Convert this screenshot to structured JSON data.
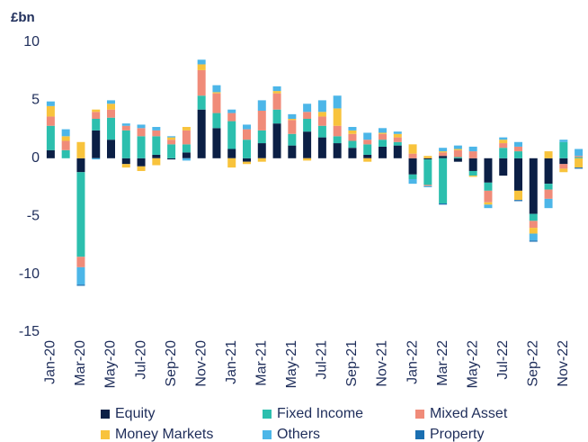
{
  "chart_data": {
    "type": "stacked_bar",
    "y_label": "£bn",
    "categories": [
      "Jan-20",
      null,
      "Mar-20",
      null,
      "May-20",
      null,
      "Jul-20",
      null,
      "Sep-20",
      null,
      "Nov-20",
      null,
      "Jan-21",
      null,
      "Mar-21",
      null,
      "May-21",
      null,
      "Jul-21",
      null,
      "Sep-21",
      null,
      "Nov-21",
      null,
      "Jan-22",
      null,
      "Mar-22",
      null,
      "May-22",
      null,
      "Jul-22",
      null,
      "Sep-22",
      null,
      "Nov-22",
      null
    ],
    "series": [
      {
        "name": "Equity",
        "color": "#0b1f45",
        "values": [
          0.7,
          0,
          -1.2,
          2.4,
          1.6,
          -0.5,
          -0.7,
          0.3,
          -0.1,
          0.5,
          4.2,
          2.6,
          0.8,
          -0.3,
          1.3,
          3.0,
          1.1,
          2.3,
          1.8,
          1.3,
          0.9,
          0.3,
          1.0,
          1.1,
          -1.4,
          -0.1,
          0.2,
          -0.3,
          -1.1,
          -2.1,
          -1.5,
          -2.8,
          -4.8,
          -2.2,
          -0.5,
          0
        ]
      },
      {
        "name": "Fixed Income",
        "color": "#2cbfae",
        "values": [
          2.1,
          0.7,
          -7.3,
          1.0,
          1.9,
          2.4,
          1.9,
          1.6,
          1.2,
          0.7,
          1.2,
          1.3,
          2.4,
          1.6,
          1.1,
          1.2,
          1.0,
          1.1,
          1.0,
          0.6,
          0.6,
          0.9,
          0.6,
          0.3,
          -0.4,
          -2.2,
          -3.9,
          0.1,
          -0.4,
          -0.7,
          0.9,
          0.6,
          -0.6,
          -0.5,
          1.4,
          0.1
        ]
      },
      {
        "name": "Mixed Asset",
        "color": "#f08b79",
        "values": [
          0.8,
          0.8,
          -0.9,
          0.6,
          0.7,
          0.4,
          0.7,
          0.5,
          0.4,
          1.2,
          2.2,
          1.7,
          0.7,
          0.9,
          1.7,
          1.4,
          1.2,
          0.6,
          0.8,
          0.9,
          0.6,
          0.4,
          0.5,
          0.4,
          0.4,
          -0.1,
          0.3,
          0.6,
          0.6,
          -1.0,
          0.4,
          0.4,
          -0.6,
          -0.8,
          -0.4,
          0.1
        ]
      },
      {
        "name": "Money Markets",
        "color": "#f8c33c",
        "values": [
          0.9,
          0.4,
          1.4,
          0.2,
          0.5,
          -0.3,
          -0.4,
          -0.6,
          0.2,
          0.3,
          0.5,
          0.1,
          -0.8,
          -0.2,
          -0.3,
          0.2,
          0.1,
          -0.2,
          0.4,
          1.5,
          0.3,
          -0.3,
          0.1,
          0.3,
          0.8,
          0.2,
          0.1,
          0.1,
          -0.1,
          -0.2,
          0.3,
          -0.8,
          -0.5,
          0.6,
          -0.3,
          -0.8
        ]
      },
      {
        "name": "Others",
        "color": "#4cb6e8",
        "values": [
          0.4,
          0.6,
          -1.5,
          -0.1,
          0.3,
          0.2,
          0.3,
          0.3,
          0.1,
          -0.2,
          0.4,
          0.6,
          0.3,
          0.4,
          0.9,
          0.4,
          0.4,
          0.7,
          1.0,
          1.1,
          0.3,
          0.6,
          0.4,
          0.2,
          -0.4,
          -0.1,
          0.3,
          0.3,
          0.4,
          -0.3,
          0.2,
          0.4,
          -0.6,
          -0.8,
          0.2,
          0.6
        ]
      },
      {
        "name": "Property",
        "color": "#1b6fb1",
        "values": [
          0,
          0,
          -0.1,
          0,
          0,
          0,
          0,
          0,
          0,
          0,
          0,
          0,
          0,
          0,
          0,
          0,
          0,
          0,
          0,
          0,
          0,
          0,
          0,
          0,
          0,
          0,
          -0.1,
          0,
          0,
          0,
          0,
          -0.1,
          -0.1,
          0,
          0,
          -0.1
        ]
      }
    ],
    "ylim": [
      -15,
      10
    ],
    "yticks": [
      -15,
      -10,
      -5,
      0,
      5,
      10
    ],
    "legend": "bottom"
  }
}
